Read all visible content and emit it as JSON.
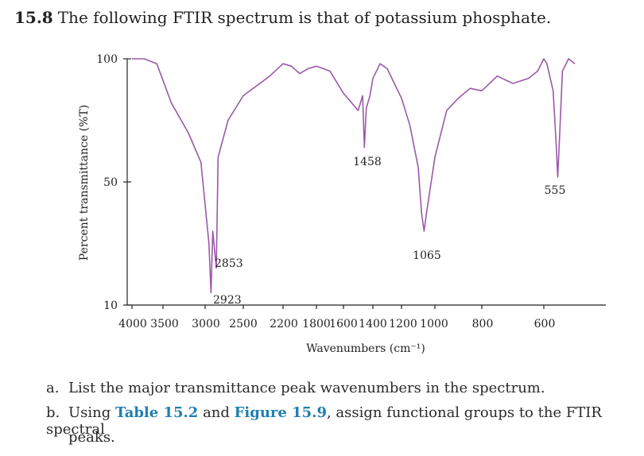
{
  "problem": {
    "number": "15.8",
    "text": "The following FTIR spectrum is that of potassium phosphate."
  },
  "chart_data": {
    "type": "line",
    "title": "",
    "xlabel": "Wavenumbers (cm⁻¹)",
    "ylabel": "Percent transmittance (%T)",
    "x_ticks": [
      "4000",
      "3500",
      "3000",
      "2500",
      "2200",
      "1800",
      "1600",
      "1400",
      "1200",
      "1000",
      "800",
      "600"
    ],
    "y_ticks": [
      "100",
      "50",
      "10"
    ],
    "ylim": [
      10,
      100
    ],
    "x_scale": "nonlinear (compressed segments as printed)",
    "grid": false,
    "series": [
      {
        "color": "#9b59a8",
        "x": [
          4000,
          3800,
          3600,
          3400,
          3200,
          3050,
          2950,
          2923,
          2900,
          2880,
          2853,
          2830,
          2700,
          2500,
          2300,
          2200,
          2100,
          2000,
          1900,
          1800,
          1700,
          1600,
          1500,
          1470,
          1458,
          1445,
          1420,
          1400,
          1350,
          1300,
          1250,
          1200,
          1150,
          1100,
          1080,
          1065,
          1050,
          1000,
          950,
          900,
          850,
          800,
          750,
          700,
          650,
          620,
          600,
          590,
          570,
          560,
          555,
          550,
          540,
          520,
          500
        ],
        "y": [
          100,
          100,
          98,
          82,
          70,
          58,
          30,
          14,
          34,
          29,
          22,
          60,
          75,
          85,
          93,
          98,
          97,
          94,
          96,
          97,
          95,
          86,
          79,
          85,
          64,
          80,
          85,
          92,
          98,
          96,
          90,
          84,
          73,
          56,
          40,
          34,
          40,
          60,
          79,
          84,
          88,
          87,
          93,
          90,
          92,
          95,
          100,
          98,
          87,
          65,
          52,
          66,
          95,
          100,
          98
        ]
      }
    ],
    "annotations": [
      {
        "text": "2923",
        "x": 2923
      },
      {
        "text": "2853",
        "x": 2853
      },
      {
        "text": "1458",
        "x": 1458
      },
      {
        "text": "1065",
        "x": 1065
      },
      {
        "text": "555",
        "x": 555
      }
    ]
  },
  "questions": [
    {
      "label": "a.",
      "text": "List the major transmittance peak wavenumbers in the spectrum."
    },
    {
      "label": "b.",
      "pre": "Using ",
      "link1": "Table 15.2",
      "mid": " and ",
      "link2": "Figure 15.9",
      "post": ", assign functional groups to the FTIR spectral",
      "cont": "peaks."
    }
  ]
}
